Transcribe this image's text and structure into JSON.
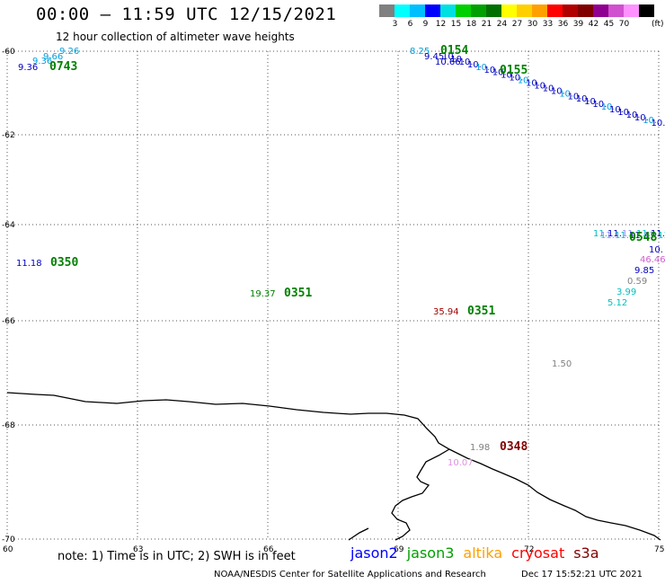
{
  "header": {
    "title": "00:00 – 11:59 UTC 12/15/2021",
    "subtitle": "12 hour collection of altimeter wave heights"
  },
  "legend": {
    "colors": [
      "#808080",
      "#00ffff",
      "#00bfff",
      "#0000ff",
      "#00e0e0",
      "#00d000",
      "#00a000",
      "#007000",
      "#ffff00",
      "#ffd000",
      "#ffa000",
      "#ff0000",
      "#b00000",
      "#800000",
      "#900090",
      "#d050d0",
      "#ff90ff",
      "#000000"
    ],
    "labels": [
      "3",
      "6",
      "9",
      "12",
      "15",
      "18",
      "21",
      "24",
      "27",
      "30",
      "33",
      "36",
      "39",
      "42",
      "45",
      "70"
    ],
    "unit": "(ft)"
  },
  "axes": {
    "y_ticks": [
      "-60",
      "-62",
      "-64",
      "-66",
      "-68",
      "-70"
    ],
    "x_ticks": [
      "60",
      "63",
      "66",
      "69",
      "72",
      "75"
    ]
  },
  "observations": [
    {
      "text": "9.26",
      "color": "#00a0e0"
    },
    {
      "text": "9.66",
      "color": "#00a0e0"
    },
    {
      "text": "9.36",
      "color": "#00a0e0"
    },
    {
      "text": "9.36",
      "color": "#0000c0"
    },
    {
      "text": "0743",
      "color": "#008000"
    },
    {
      "text": "8.25",
      "color": "#00a0e0"
    },
    {
      "text": "9.45",
      "color": "#0000c0"
    },
    {
      "text": "0154",
      "color": "#008000"
    },
    {
      "text": "10.66",
      "color": "#0000c0"
    },
    {
      "text": "0155",
      "color": "#008000"
    },
    {
      "text": "11.18",
      "color": "#0000c0"
    },
    {
      "text": "0350",
      "color": "#008000"
    },
    {
      "text": "19.37",
      "color": "#008000"
    },
    {
      "text": "0351",
      "color": "#008000"
    },
    {
      "text": "35.94",
      "color": "#a00000"
    },
    {
      "text": "0351",
      "color": "#008000"
    },
    {
      "text": "1.50",
      "color": "#808080"
    },
    {
      "text": "1.98",
      "color": "#808080"
    },
    {
      "text": "0348",
      "color": "#800000"
    },
    {
      "text": "0548",
      "color": "#008000"
    },
    {
      "text": "10.",
      "color": "#0000c0"
    },
    {
      "text": "46.46",
      "color": "#d060d0"
    },
    {
      "text": "9.85",
      "color": "#0000c0"
    },
    {
      "text": "0.59",
      "color": "#808080"
    },
    {
      "text": "3.99",
      "color": "#00c0c0"
    },
    {
      "text": "5.12",
      "color": "#00c0c0"
    }
  ],
  "footer": {
    "note": "note: 1) Time is in UTC; 2) SWH is in feet",
    "satellites": [
      {
        "name": "jason2",
        "color": "#0000ff"
      },
      {
        "name": "jason3",
        "color": "#00a000"
      },
      {
        "name": "altika",
        "color": "#ffa000"
      },
      {
        "name": "cryosat",
        "color": "#ff0000"
      },
      {
        "name": "s3a",
        "color": "#800000"
      }
    ],
    "credit": "NOAA/NESDIS Center for Satellite Applications and Research",
    "timestamp": "Dec 17 15:52:21 UTC 2021"
  }
}
